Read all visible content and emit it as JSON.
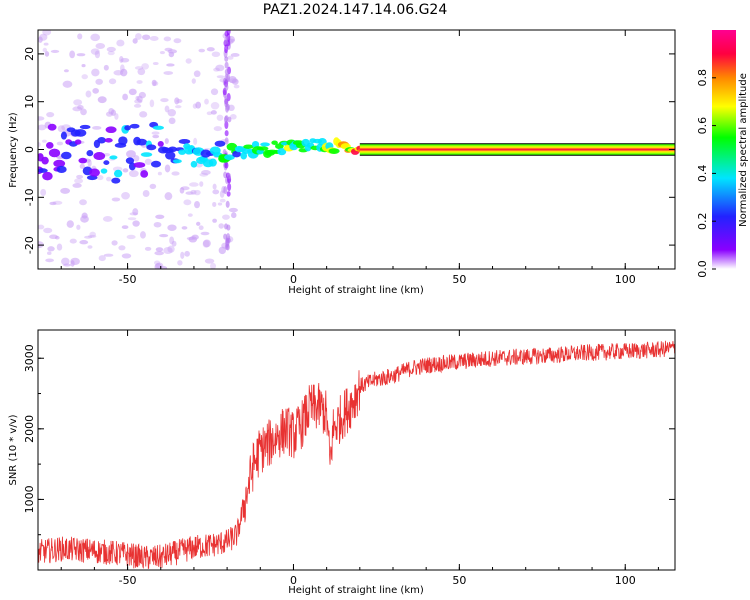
{
  "title": "PAZ1.2024.147.14.06.G24",
  "chart_data": [
    {
      "type": "heatmap",
      "xlabel": "Height of straight line (km)",
      "ylabel": "Frequency (Hz)",
      "xlim": [
        -77,
        115
      ],
      "ylim": [
        -25,
        25
      ],
      "xticks": [
        "-50",
        "0",
        "50",
        "100"
      ],
      "yticks": [
        "-20",
        "-10",
        "0",
        "10",
        "20"
      ],
      "colorbar": {
        "label": "Normalized spectral amplitude",
        "range": [
          0,
          1
        ],
        "ticks": [
          "0.0",
          "0.2",
          "0.4",
          "0.6",
          "0.8"
        ],
        "colors": [
          "#ffffff",
          "#8a00ff",
          "#2222ff",
          "#00e5ff",
          "#00ff00",
          "#ffff00",
          "#ff8800",
          "#ff0040",
          "#ff0090"
        ]
      },
      "description_points": [
        {
          "x": -77,
          "y": 0,
          "amp": 0.2
        },
        {
          "x": -50,
          "y": -1,
          "amp": 0.3
        },
        {
          "x": -40,
          "y": 0,
          "amp": 0.3
        },
        {
          "x": -25,
          "y": -1,
          "amp": 0.4
        },
        {
          "x": -10,
          "y": 0,
          "amp": 0.5
        },
        {
          "x": 8,
          "y": 1,
          "amp": 0.5
        },
        {
          "x": 20,
          "y": 0,
          "amp": 0.8
        },
        {
          "x": 115,
          "y": 0,
          "amp": 0.95
        }
      ]
    },
    {
      "type": "line",
      "xlabel": "Height of straight line (km)",
      "ylabel": "SNR (10 * v/v)",
      "xlim": [
        -77,
        115
      ],
      "ylim": [
        0,
        3400
      ],
      "xticks": [
        "-50",
        "0",
        "50",
        "100"
      ],
      "yticks": [
        "1000",
        "2000",
        "3000"
      ],
      "color": "#e83232",
      "series": [
        {
          "x": [
            -77,
            -70,
            -60,
            -50,
            -45,
            -40,
            -35,
            -30,
            -25,
            -20,
            -17,
            -15,
            -12,
            -10,
            -7,
            -5,
            -2,
            0,
            3,
            5,
            8,
            10,
            11,
            12,
            15,
            18,
            20,
            25,
            30,
            35,
            40,
            50,
            60,
            70,
            80,
            90,
            100,
            110,
            115
          ],
          "values": [
            250,
            300,
            270,
            220,
            170,
            180,
            250,
            320,
            350,
            400,
            500,
            900,
            1500,
            1700,
            1800,
            1900,
            2000,
            1900,
            2100,
            2300,
            2300,
            2200,
            1500,
            2000,
            2200,
            2400,
            2600,
            2700,
            2750,
            2850,
            2900,
            2950,
            3000,
            3020,
            3050,
            3080,
            3100,
            3120,
            3150
          ]
        }
      ]
    }
  ]
}
